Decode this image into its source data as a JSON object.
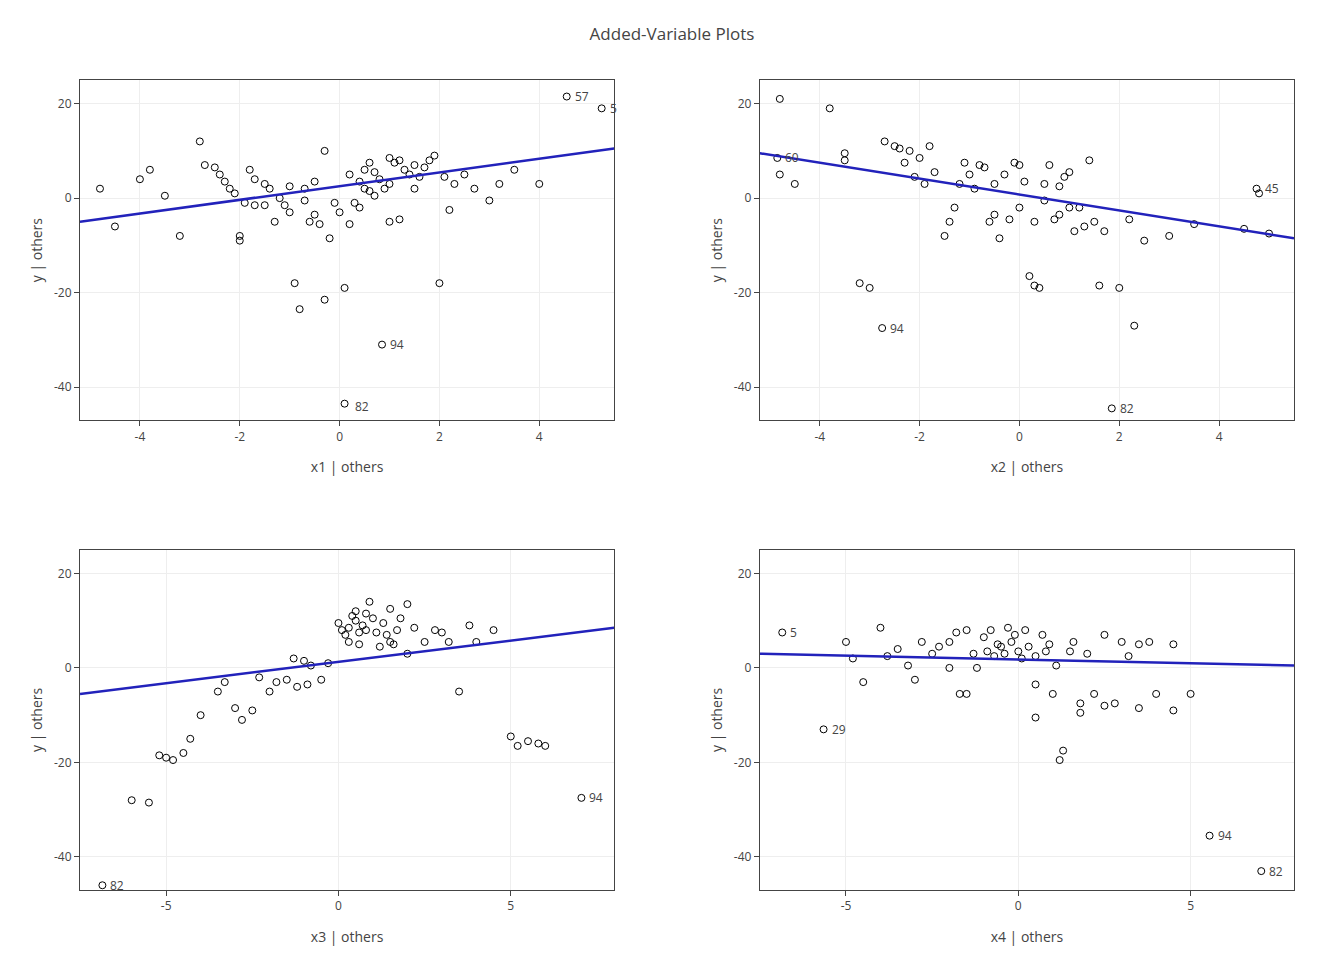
{
  "title": "Added-Variable Plots",
  "chart_data": [
    {
      "type": "scatter",
      "xlabel": "x1 | others",
      "ylabel": "y | others",
      "xlim": [
        -5.2,
        5.5
      ],
      "ylim": [
        -47,
        25
      ],
      "xticks": [
        -4,
        -2,
        0,
        2,
        4
      ],
      "yticks": [
        -40,
        -20,
        0,
        20
      ],
      "grid": true,
      "series": [
        {
          "type": "scatter",
          "marker": "circle-open",
          "color": "#000000",
          "x": [
            -4.8,
            -4.5,
            -4.0,
            -3.8,
            -3.5,
            -3.2,
            -2.8,
            -2.7,
            -2.5,
            -2.4,
            -2.3,
            -2.2,
            -2.1,
            -2.0,
            -2.0,
            -1.9,
            -1.8,
            -1.7,
            -1.7,
            -1.5,
            -1.5,
            -1.4,
            -1.3,
            -1.2,
            -1.1,
            -1.0,
            -1.0,
            -0.9,
            -0.8,
            -0.7,
            -0.7,
            -0.6,
            -0.5,
            -0.5,
            -0.4,
            -0.3,
            -0.3,
            -0.2,
            -0.1,
            0.0,
            0.1,
            0.2,
            0.2,
            0.3,
            0.4,
            0.4,
            0.5,
            0.5,
            0.6,
            0.6,
            0.7,
            0.7,
            0.8,
            0.9,
            1.0,
            1.0,
            1.0,
            1.1,
            1.2,
            1.2,
            1.3,
            1.4,
            1.5,
            1.5,
            1.6,
            1.7,
            1.8,
            1.9,
            2.0,
            2.1,
            2.2,
            2.3,
            2.5,
            2.7,
            3.0,
            3.2,
            3.5,
            4.0,
            4.55,
            5.25,
            0.1,
            0.85
          ],
          "values": [
            2.0,
            -6.0,
            4.0,
            6.0,
            0.5,
            -8.0,
            12.0,
            7.0,
            6.5,
            5.0,
            3.5,
            2.0,
            1.0,
            -8.0,
            -9.0,
            -1.0,
            6.0,
            -1.5,
            4.0,
            -1.5,
            3.0,
            2.0,
            -5.0,
            0.0,
            -1.5,
            2.5,
            -3.0,
            -18.0,
            -23.5,
            -0.5,
            2.0,
            -5.0,
            3.5,
            -3.5,
            -5.5,
            -21.5,
            10.0,
            -8.5,
            -1.0,
            -3.0,
            -19.0,
            5.0,
            -5.5,
            -1.0,
            3.5,
            -2.0,
            6.0,
            2.0,
            7.5,
            1.5,
            5.5,
            0.5,
            4.0,
            2.0,
            8.5,
            3.0,
            -5.0,
            7.5,
            8.0,
            -4.5,
            6.0,
            5.0,
            7.0,
            2.0,
            4.5,
            6.5,
            8.0,
            9.0,
            -18.0,
            4.5,
            -2.5,
            3.0,
            5.0,
            2.0,
            -0.5,
            3.0,
            6.0,
            3.0,
            21.5,
            19.0,
            -43.5,
            -31.0
          ]
        },
        {
          "type": "line",
          "color": "#2222bb",
          "x": [
            -5.2,
            5.5
          ],
          "values": [
            -5.0,
            10.5
          ]
        }
      ],
      "annotations": [
        {
          "label": "57",
          "x": 4.55,
          "y": 21.5
        },
        {
          "label": "5",
          "x": 5.25,
          "y": 19.0
        },
        {
          "label": "94",
          "x": 0.85,
          "y": -31.0
        },
        {
          "label": "82",
          "x": 0.15,
          "y": -44.0
        }
      ]
    },
    {
      "type": "scatter",
      "xlabel": "x2 | others",
      "ylabel": "y | others",
      "xlim": [
        -5.2,
        5.5
      ],
      "ylim": [
        -47,
        25
      ],
      "xticks": [
        -4,
        -2,
        0,
        2,
        4
      ],
      "yticks": [
        -40,
        -20,
        0,
        20
      ],
      "grid": true,
      "series": [
        {
          "type": "scatter",
          "marker": "circle-open",
          "color": "#000000",
          "x": [
            -4.85,
            -4.8,
            -4.8,
            -4.5,
            -3.8,
            -3.5,
            -3.5,
            -3.2,
            -3.0,
            -2.75,
            -2.7,
            -2.5,
            -2.4,
            -2.3,
            -2.2,
            -2.1,
            -2.0,
            -1.9,
            -1.8,
            -1.7,
            -1.5,
            -1.4,
            -1.3,
            -1.2,
            -1.1,
            -1.0,
            -0.9,
            -0.8,
            -0.7,
            -0.6,
            -0.5,
            -0.5,
            -0.4,
            -0.3,
            -0.2,
            -0.1,
            0.0,
            0.0,
            0.1,
            0.2,
            0.3,
            0.3,
            0.4,
            0.5,
            0.5,
            0.6,
            0.7,
            0.8,
            0.8,
            0.9,
            1.0,
            1.0,
            1.1,
            1.2,
            1.3,
            1.4,
            1.5,
            1.6,
            1.7,
            1.85,
            2.0,
            2.2,
            2.3,
            2.5,
            3.0,
            3.5,
            4.5,
            4.75,
            4.8,
            5.0
          ],
          "values": [
            8.5,
            21.0,
            5.0,
            3.0,
            19.0,
            9.5,
            8.0,
            -18.0,
            -19.0,
            -27.5,
            12.0,
            11.0,
            10.5,
            7.5,
            10.0,
            4.5,
            8.5,
            3.0,
            11.0,
            5.5,
            -8.0,
            -5.0,
            -2.0,
            3.0,
            7.5,
            5.0,
            2.0,
            7.0,
            6.5,
            -5.0,
            3.0,
            -3.5,
            -8.5,
            5.0,
            -4.5,
            7.5,
            -2.0,
            7.0,
            3.5,
            -16.5,
            -5.0,
            -18.5,
            -19.0,
            -0.5,
            3.0,
            7.0,
            -4.5,
            2.5,
            -3.5,
            4.5,
            -2.0,
            5.5,
            -7.0,
            -2.0,
            -6.0,
            8.0,
            -5.0,
            -18.5,
            -7.0,
            -44.5,
            -19.0,
            -4.5,
            -27.0,
            -9.0,
            -8.0,
            -5.5,
            -6.5,
            2.0,
            1.0,
            -7.5
          ]
        },
        {
          "type": "line",
          "color": "#2222bb",
          "x": [
            -5.2,
            5.5
          ],
          "values": [
            9.5,
            -8.5
          ]
        }
      ],
      "annotations": [
        {
          "label": "60",
          "x": -4.85,
          "y": 8.5
        },
        {
          "label": "45",
          "x": 4.75,
          "y": 2.0
        },
        {
          "label": "94",
          "x": -2.75,
          "y": -27.5
        },
        {
          "label": "82",
          "x": 1.85,
          "y": -44.5
        }
      ]
    },
    {
      "type": "scatter",
      "xlabel": "x3 | others",
      "ylabel": "y | others",
      "xlim": [
        -7.5,
        8.0
      ],
      "ylim": [
        -47,
        25
      ],
      "xticks": [
        -5,
        0,
        5
      ],
      "yticks": [
        -40,
        -20,
        0,
        20
      ],
      "grid": true,
      "series": [
        {
          "type": "scatter",
          "marker": "circle-open",
          "color": "#000000",
          "x": [
            -6.85,
            -6.0,
            -5.5,
            -5.2,
            -5.0,
            -4.8,
            -4.5,
            -4.3,
            -4.0,
            -3.5,
            -3.3,
            -3.0,
            -2.8,
            -2.5,
            -2.3,
            -2.0,
            -1.8,
            -1.5,
            -1.3,
            -1.2,
            -1.0,
            -0.9,
            -0.8,
            -0.5,
            -0.3,
            0.0,
            0.1,
            0.2,
            0.3,
            0.3,
            0.4,
            0.5,
            0.5,
            0.6,
            0.6,
            0.7,
            0.8,
            0.8,
            0.9,
            1.0,
            1.1,
            1.2,
            1.3,
            1.4,
            1.5,
            1.5,
            1.6,
            1.7,
            1.8,
            2.0,
            2.0,
            2.2,
            2.5,
            2.8,
            3.0,
            3.2,
            3.5,
            3.8,
            4.0,
            4.5,
            5.0,
            5.2,
            5.5,
            5.8,
            6.0,
            7.05
          ],
          "values": [
            -46.0,
            -28.0,
            -28.5,
            -18.5,
            -19.0,
            -19.5,
            -18.0,
            -15.0,
            -10.0,
            -5.0,
            -3.0,
            -8.5,
            -11.0,
            -9.0,
            -2.0,
            -5.0,
            -3.0,
            -2.5,
            2.0,
            -4.0,
            1.5,
            -3.5,
            0.5,
            -2.5,
            1.0,
            9.5,
            8.0,
            7.0,
            5.5,
            8.5,
            11.0,
            10.0,
            12.0,
            7.5,
            5.0,
            9.0,
            11.5,
            8.0,
            14.0,
            10.5,
            7.5,
            4.5,
            9.5,
            7.0,
            12.5,
            5.5,
            5.0,
            8.0,
            10.5,
            13.5,
            3.0,
            8.5,
            5.5,
            8.0,
            7.5,
            5.5,
            -5.0,
            9.0,
            5.5,
            8.0,
            -14.5,
            -16.5,
            -15.5,
            -16.0,
            -16.5,
            -27.5
          ]
        },
        {
          "type": "line",
          "color": "#2222bb",
          "x": [
            -7.5,
            8.0
          ],
          "values": [
            -5.5,
            8.5
          ]
        }
      ],
      "annotations": [
        {
          "label": "82",
          "x": -6.85,
          "y": -46.0
        },
        {
          "label": "94",
          "x": 7.05,
          "y": -27.5
        }
      ]
    },
    {
      "type": "scatter",
      "xlabel": "x4 | others",
      "ylabel": "y | others",
      "xlim": [
        -7.5,
        8.0
      ],
      "ylim": [
        -47,
        25
      ],
      "xticks": [
        -5,
        0,
        5
      ],
      "yticks": [
        -40,
        -20,
        0,
        20
      ],
      "grid": true,
      "series": [
        {
          "type": "scatter",
          "marker": "circle-open",
          "color": "#000000",
          "x": [
            -6.85,
            -5.65,
            -5.0,
            -4.8,
            -4.5,
            -4.0,
            -3.8,
            -3.5,
            -3.2,
            -3.0,
            -2.8,
            -2.5,
            -2.3,
            -2.0,
            -2.0,
            -1.8,
            -1.7,
            -1.5,
            -1.3,
            -1.2,
            -1.0,
            -0.9,
            -0.8,
            -0.7,
            -0.6,
            -0.5,
            -0.4,
            -0.3,
            -0.2,
            -0.1,
            0.0,
            0.1,
            0.2,
            0.3,
            0.5,
            0.5,
            0.7,
            0.8,
            0.9,
            1.0,
            1.1,
            1.2,
            1.3,
            1.5,
            1.6,
            1.8,
            2.0,
            2.2,
            2.5,
            2.8,
            3.0,
            3.2,
            3.5,
            3.8,
            4.0,
            4.5,
            5.0,
            5.55,
            7.05,
            -1.5,
            0.5,
            1.8,
            2.5,
            3.5,
            4.5
          ],
          "values": [
            7.5,
            -13.0,
            5.5,
            2.0,
            -3.0,
            8.5,
            2.5,
            4.0,
            0.5,
            -2.5,
            5.5,
            3.0,
            4.5,
            0.0,
            5.5,
            7.5,
            -5.5,
            8.0,
            3.0,
            0.0,
            6.5,
            3.5,
            8.0,
            2.5,
            5.0,
            4.5,
            3.0,
            8.5,
            5.5,
            7.0,
            3.5,
            2.0,
            8.0,
            4.5,
            2.5,
            -3.5,
            7.0,
            3.5,
            5.0,
            -5.5,
            0.5,
            -19.5,
            -17.5,
            3.5,
            5.5,
            -7.5,
            3.0,
            -5.5,
            -8.0,
            -7.5,
            5.5,
            2.5,
            5.0,
            5.5,
            -5.5,
            5.0,
            -5.5,
            -35.5,
            -43.0,
            -5.5,
            -10.5,
            -9.5,
            7.0,
            -8.5,
            -9.0
          ]
        },
        {
          "type": "line",
          "color": "#2222bb",
          "x": [
            -7.5,
            8.0
          ],
          "values": [
            3.0,
            0.5
          ]
        }
      ],
      "annotations": [
        {
          "label": "5",
          "x": -6.85,
          "y": 7.5
        },
        {
          "label": "29",
          "x": -5.65,
          "y": -13.0
        },
        {
          "label": "94",
          "x": 5.55,
          "y": -35.5
        },
        {
          "label": "82",
          "x": 7.05,
          "y": -43.0
        }
      ]
    }
  ]
}
